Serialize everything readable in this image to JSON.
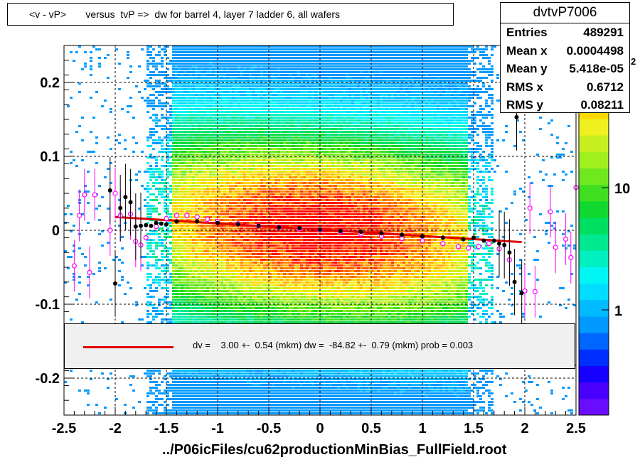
{
  "title": "<v - vP>       versus  tvP =>  dw for barrel 4, layer 7 ladder 6, all wafers",
  "stats": {
    "name": "dvtvP7006",
    "rows": [
      {
        "label": "Entries",
        "value": "489291"
      },
      {
        "label": "Mean x",
        "value": "0.0004498"
      },
      {
        "label": "Mean y",
        "value": "5.418e-05"
      },
      {
        "label": "RMS x",
        "value": "0.6712"
      },
      {
        "label": "RMS y",
        "value": "0.08211"
      }
    ]
  },
  "fit": {
    "text": "dv =    3.00 +-  0.54 (mkm) dw =  -84.82 +-  0.79 (mkm) prob = 0.003",
    "line_color": "#e00000"
  },
  "colorbar": {
    "tick_labels": [
      "1",
      "10"
    ],
    "partial_label": "0",
    "exponent": "2"
  },
  "chart_data": {
    "type": "heatmap",
    "xlabel": "../P06icFiles/cu62productionMinBias_FullField.root",
    "ylabel": "",
    "xlim": [
      -2.5,
      2.5
    ],
    "ylim": [
      -0.25,
      0.25
    ],
    "x_ticks": [
      -2.5,
      -2,
      -1.5,
      -1,
      -0.5,
      0,
      0.5,
      1,
      1.5,
      2,
      2.5
    ],
    "x_tick_labels": [
      "-2.5",
      "-2",
      "-1.5",
      "-1",
      "-0.5",
      "0",
      "0.5",
      "1",
      "1.5",
      "2",
      "2.5"
    ],
    "y_ticks": [
      -0.2,
      -0.1,
      0,
      0.1,
      0.2
    ],
    "y_tick_labels": [
      "-0.2",
      "-0.1",
      "0",
      "0.1",
      "0.2"
    ],
    "grid": true,
    "colorscale": "log",
    "density_core": {
      "x_range": [
        -1.6,
        1.6
      ],
      "y_center": 0.0,
      "sigma_y": 0.082
    },
    "fit_line": {
      "x": [
        -2.0,
        1.97
      ],
      "y": [
        0.018,
        -0.016
      ],
      "color": "#e00000"
    },
    "profile_mean": [
      {
        "x": -2.05,
        "y": 0.054
      },
      {
        "x": -2.0,
        "y": -0.072
      },
      {
        "x": -1.95,
        "y": 0.03
      },
      {
        "x": -1.9,
        "y": 0.045
      },
      {
        "x": -1.85,
        "y": 0.038
      },
      {
        "x": -1.8,
        "y": 0.005
      },
      {
        "x": -1.75,
        "y": 0.006
      },
      {
        "x": -1.7,
        "y": 0.007
      },
      {
        "x": -1.65,
        "y": 0.006
      },
      {
        "x": -1.6,
        "y": 0.01
      },
      {
        "x": -1.55,
        "y": 0.009
      },
      {
        "x": -1.5,
        "y": 0.008
      },
      {
        "x": -1.4,
        "y": 0.012
      },
      {
        "x": -1.2,
        "y": 0.012
      },
      {
        "x": -1.0,
        "y": 0.01
      },
      {
        "x": -0.8,
        "y": 0.008
      },
      {
        "x": -0.6,
        "y": 0.006
      },
      {
        "x": -0.4,
        "y": 0.004
      },
      {
        "x": -0.2,
        "y": 0.003
      },
      {
        "x": 0.0,
        "y": 0.001
      },
      {
        "x": 0.2,
        "y": -0.001
      },
      {
        "x": 0.4,
        "y": -0.002
      },
      {
        "x": 0.6,
        "y": -0.004
      },
      {
        "x": 0.8,
        "y": -0.006
      },
      {
        "x": 1.0,
        "y": -0.008
      },
      {
        "x": 1.2,
        "y": -0.01
      },
      {
        "x": 1.4,
        "y": -0.012
      },
      {
        "x": 1.5,
        "y": -0.01
      },
      {
        "x": 1.6,
        "y": -0.014
      },
      {
        "x": 1.7,
        "y": -0.014
      },
      {
        "x": 1.75,
        "y": -0.018
      },
      {
        "x": 1.8,
        "y": -0.02
      },
      {
        "x": 1.85,
        "y": -0.03
      },
      {
        "x": 1.9,
        "y": -0.07
      },
      {
        "x": 1.92,
        "y": 0.153
      },
      {
        "x": 1.97,
        "y": -0.085
      }
    ],
    "profile_alt": [
      {
        "x": -2.4,
        "y": -0.048
      },
      {
        "x": -2.35,
        "y": 0.02
      },
      {
        "x": -2.3,
        "y": 0.048
      },
      {
        "x": -2.25,
        "y": -0.057
      },
      {
        "x": -2.2,
        "y": 0.048
      },
      {
        "x": -2.05,
        "y": 0.0
      },
      {
        "x": -2.0,
        "y": 0.05
      },
      {
        "x": -1.95,
        "y": 0.02
      },
      {
        "x": -1.85,
        "y": 0.022
      },
      {
        "x": -1.8,
        "y": -0.015
      },
      {
        "x": -1.75,
        "y": -0.02
      },
      {
        "x": -1.7,
        "y": -0.01
      },
      {
        "x": -1.6,
        "y": 0.005
      },
      {
        "x": -1.5,
        "y": 0.016
      },
      {
        "x": -1.4,
        "y": 0.02
      },
      {
        "x": -1.3,
        "y": 0.02
      },
      {
        "x": -1.2,
        "y": 0.018
      },
      {
        "x": -1.1,
        "y": 0.015
      },
      {
        "x": -1.0,
        "y": 0.012
      },
      {
        "x": -0.8,
        "y": 0.009
      },
      {
        "x": -0.6,
        "y": 0.006
      },
      {
        "x": -0.4,
        "y": 0.004
      },
      {
        "x": -0.2,
        "y": 0.002
      },
      {
        "x": 0.0,
        "y": 0.0
      },
      {
        "x": 0.2,
        "y": -0.002
      },
      {
        "x": 0.4,
        "y": -0.005
      },
      {
        "x": 0.6,
        "y": -0.008
      },
      {
        "x": 0.8,
        "y": -0.011
      },
      {
        "x": 1.0,
        "y": -0.014
      },
      {
        "x": 1.2,
        "y": -0.018
      },
      {
        "x": 1.35,
        "y": -0.022
      },
      {
        "x": 1.45,
        "y": -0.024
      },
      {
        "x": 1.55,
        "y": -0.022
      },
      {
        "x": 1.65,
        "y": -0.018
      },
      {
        "x": 1.75,
        "y": -0.025
      },
      {
        "x": 1.85,
        "y": -0.04
      },
      {
        "x": 2.0,
        "y": -0.082
      },
      {
        "x": 2.05,
        "y": 0.03
      },
      {
        "x": 2.1,
        "y": -0.083
      },
      {
        "x": 2.25,
        "y": 0.025
      },
      {
        "x": 2.3,
        "y": -0.023
      },
      {
        "x": 2.4,
        "y": -0.012
      },
      {
        "x": 2.45,
        "y": -0.037
      },
      {
        "x": 2.5,
        "y": 0.058
      }
    ]
  }
}
